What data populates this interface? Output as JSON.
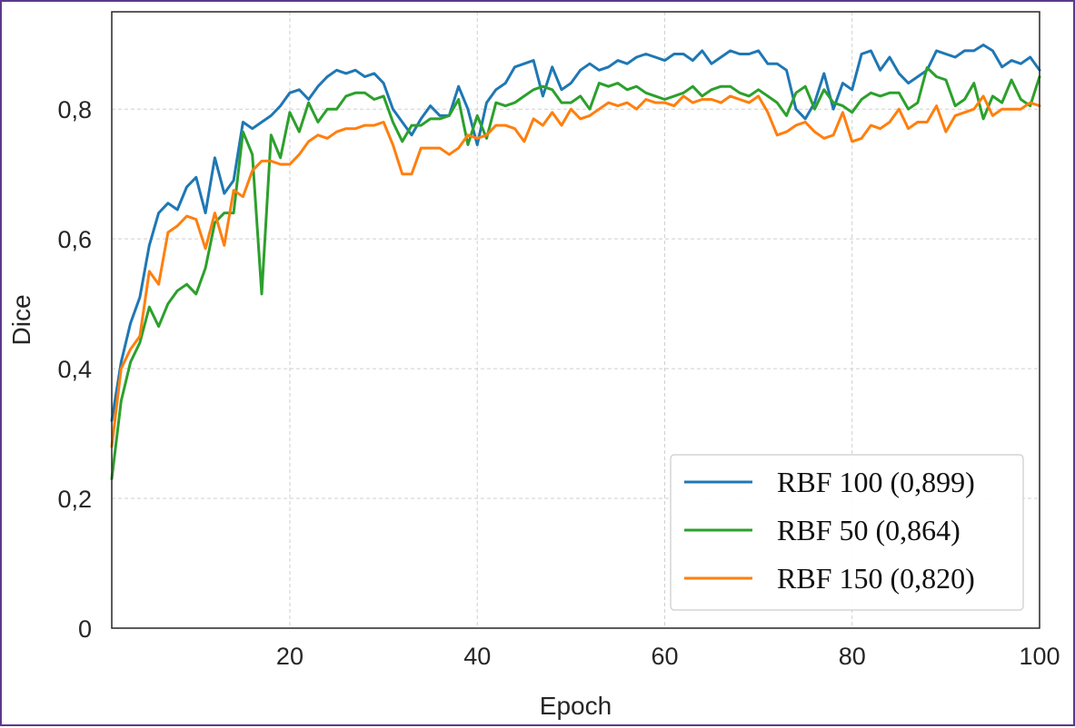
{
  "chart_data": {
    "type": "line",
    "xlabel": "Epoch",
    "ylabel": "Dice",
    "xlim": [
      1,
      100
    ],
    "ylim": [
      0,
      0.95
    ],
    "xticks": [
      20,
      40,
      60,
      80,
      100
    ],
    "xtick_labels": [
      "20",
      "40",
      "60",
      "80",
      "100"
    ],
    "yticks": [
      0,
      0.2,
      0.4,
      0.6,
      0.8
    ],
    "ytick_labels": [
      "0",
      "0,2",
      "0,4",
      "0,6",
      "0,8"
    ],
    "grid": true,
    "legend_position": "bottom-right",
    "series": [
      {
        "name": "RBF 100 (0,899)",
        "color": "#1f77b4",
        "x": [
          1,
          2,
          3,
          4,
          5,
          6,
          7,
          8,
          9,
          10,
          11,
          12,
          13,
          14,
          15,
          16,
          17,
          18,
          19,
          20,
          21,
          22,
          23,
          24,
          25,
          26,
          27,
          28,
          29,
          30,
          31,
          32,
          33,
          34,
          35,
          36,
          37,
          38,
          39,
          40,
          41,
          42,
          43,
          44,
          45,
          46,
          47,
          48,
          49,
          50,
          51,
          52,
          53,
          54,
          55,
          56,
          57,
          58,
          59,
          60,
          61,
          62,
          63,
          64,
          65,
          66,
          67,
          68,
          69,
          70,
          71,
          72,
          73,
          74,
          75,
          76,
          77,
          78,
          79,
          80,
          81,
          82,
          83,
          84,
          85,
          86,
          87,
          88,
          89,
          90,
          91,
          92,
          93,
          94,
          95,
          96,
          97,
          98,
          99,
          100
        ],
        "values": [
          0.32,
          0.41,
          0.47,
          0.51,
          0.59,
          0.64,
          0.655,
          0.645,
          0.68,
          0.695,
          0.64,
          0.725,
          0.67,
          0.69,
          0.78,
          0.77,
          0.78,
          0.79,
          0.805,
          0.825,
          0.83,
          0.815,
          0.835,
          0.85,
          0.86,
          0.855,
          0.86,
          0.85,
          0.855,
          0.84,
          0.8,
          0.78,
          0.76,
          0.785,
          0.805,
          0.79,
          0.79,
          0.835,
          0.8,
          0.745,
          0.81,
          0.83,
          0.84,
          0.865,
          0.87,
          0.875,
          0.82,
          0.865,
          0.83,
          0.84,
          0.86,
          0.87,
          0.86,
          0.865,
          0.875,
          0.87,
          0.88,
          0.885,
          0.88,
          0.875,
          0.885,
          0.885,
          0.875,
          0.89,
          0.87,
          0.88,
          0.89,
          0.885,
          0.885,
          0.89,
          0.87,
          0.87,
          0.86,
          0.8,
          0.785,
          0.81,
          0.855,
          0.8,
          0.84,
          0.83,
          0.885,
          0.89,
          0.86,
          0.88,
          0.855,
          0.84,
          0.85,
          0.86,
          0.89,
          0.885,
          0.88,
          0.89,
          0.89,
          0.899,
          0.89,
          0.865,
          0.875,
          0.87,
          0.88,
          0.86
        ]
      },
      {
        "name": "RBF 50 (0,864)",
        "color": "#2ca02c",
        "x": [
          1,
          2,
          3,
          4,
          5,
          6,
          7,
          8,
          9,
          10,
          11,
          12,
          13,
          14,
          15,
          16,
          17,
          18,
          19,
          20,
          21,
          22,
          23,
          24,
          25,
          26,
          27,
          28,
          29,
          30,
          31,
          32,
          33,
          34,
          35,
          36,
          37,
          38,
          39,
          40,
          41,
          42,
          43,
          44,
          45,
          46,
          47,
          48,
          49,
          50,
          51,
          52,
          53,
          54,
          55,
          56,
          57,
          58,
          59,
          60,
          61,
          62,
          63,
          64,
          65,
          66,
          67,
          68,
          69,
          70,
          71,
          72,
          73,
          74,
          75,
          76,
          77,
          78,
          79,
          80,
          81,
          82,
          83,
          84,
          85,
          86,
          87,
          88,
          89,
          90,
          91,
          92,
          93,
          94,
          95,
          96,
          97,
          98,
          99,
          100
        ],
        "values": [
          0.23,
          0.35,
          0.41,
          0.44,
          0.495,
          0.465,
          0.5,
          0.52,
          0.53,
          0.515,
          0.555,
          0.625,
          0.64,
          0.64,
          0.765,
          0.73,
          0.515,
          0.76,
          0.725,
          0.795,
          0.765,
          0.81,
          0.78,
          0.8,
          0.8,
          0.82,
          0.825,
          0.825,
          0.815,
          0.82,
          0.78,
          0.75,
          0.775,
          0.775,
          0.785,
          0.785,
          0.79,
          0.815,
          0.745,
          0.79,
          0.755,
          0.81,
          0.805,
          0.81,
          0.82,
          0.83,
          0.835,
          0.83,
          0.81,
          0.81,
          0.82,
          0.8,
          0.84,
          0.835,
          0.84,
          0.83,
          0.835,
          0.825,
          0.82,
          0.815,
          0.82,
          0.825,
          0.835,
          0.82,
          0.83,
          0.835,
          0.835,
          0.825,
          0.82,
          0.83,
          0.82,
          0.81,
          0.79,
          0.825,
          0.835,
          0.8,
          0.83,
          0.81,
          0.805,
          0.795,
          0.815,
          0.825,
          0.82,
          0.825,
          0.825,
          0.8,
          0.81,
          0.864,
          0.85,
          0.845,
          0.805,
          0.815,
          0.84,
          0.785,
          0.82,
          0.81,
          0.845,
          0.815,
          0.805,
          0.85
        ]
      },
      {
        "name": "RBF 150 (0,820)",
        "color": "#ff7f0e",
        "x": [
          1,
          2,
          3,
          4,
          5,
          6,
          7,
          8,
          9,
          10,
          11,
          12,
          13,
          14,
          15,
          16,
          17,
          18,
          19,
          20,
          21,
          22,
          23,
          24,
          25,
          26,
          27,
          28,
          29,
          30,
          31,
          32,
          33,
          34,
          35,
          36,
          37,
          38,
          39,
          40,
          41,
          42,
          43,
          44,
          45,
          46,
          47,
          48,
          49,
          50,
          51,
          52,
          53,
          54,
          55,
          56,
          57,
          58,
          59,
          60,
          61,
          62,
          63,
          64,
          65,
          66,
          67,
          68,
          69,
          70,
          71,
          72,
          73,
          74,
          75,
          76,
          77,
          78,
          79,
          80,
          81,
          82,
          83,
          84,
          85,
          86,
          87,
          88,
          89,
          90,
          91,
          92,
          93,
          94,
          95,
          96,
          97,
          98,
          99,
          100
        ],
        "values": [
          0.28,
          0.4,
          0.43,
          0.45,
          0.55,
          0.53,
          0.61,
          0.62,
          0.635,
          0.63,
          0.585,
          0.64,
          0.59,
          0.675,
          0.665,
          0.705,
          0.72,
          0.72,
          0.715,
          0.715,
          0.73,
          0.75,
          0.76,
          0.755,
          0.765,
          0.77,
          0.77,
          0.775,
          0.775,
          0.78,
          0.745,
          0.7,
          0.7,
          0.74,
          0.74,
          0.74,
          0.73,
          0.74,
          0.76,
          0.755,
          0.76,
          0.775,
          0.775,
          0.77,
          0.75,
          0.785,
          0.775,
          0.795,
          0.775,
          0.8,
          0.785,
          0.79,
          0.8,
          0.81,
          0.805,
          0.81,
          0.8,
          0.815,
          0.81,
          0.81,
          0.805,
          0.82,
          0.81,
          0.815,
          0.815,
          0.81,
          0.82,
          0.815,
          0.81,
          0.82,
          0.795,
          0.76,
          0.765,
          0.775,
          0.78,
          0.765,
          0.755,
          0.76,
          0.795,
          0.75,
          0.755,
          0.775,
          0.77,
          0.78,
          0.8,
          0.77,
          0.78,
          0.78,
          0.805,
          0.765,
          0.79,
          0.795,
          0.8,
          0.82,
          0.79,
          0.8,
          0.8,
          0.8,
          0.81,
          0.805
        ]
      }
    ]
  }
}
